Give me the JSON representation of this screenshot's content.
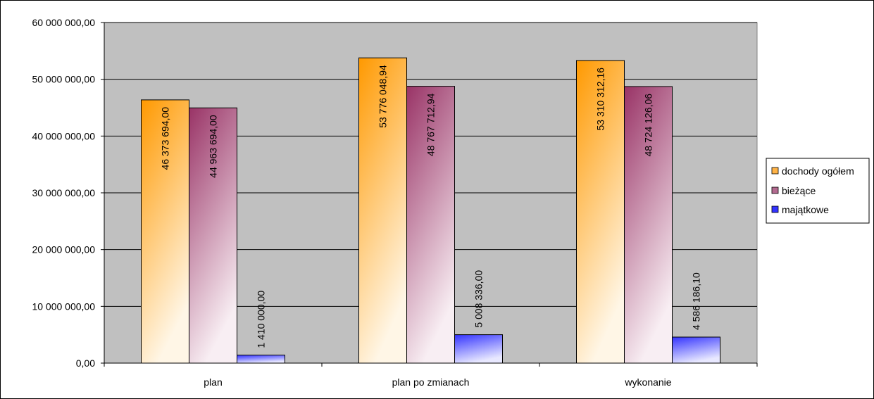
{
  "chart_data": {
    "type": "bar",
    "categories": [
      "plan",
      "plan po zmianach",
      "wykonanie"
    ],
    "series": [
      {
        "name": "dochody ogółem",
        "values": [
          46373694.0,
          53776048.94,
          53310312.16
        ],
        "labels": [
          "46 373 694,00",
          "53 776 048,94",
          "53 310 312,16"
        ],
        "color_top": "#FF9900",
        "color_bottom": "#FFF6E6"
      },
      {
        "name": "bieżące",
        "values": [
          44963694.0,
          48767712.94,
          48724126.06
        ],
        "labels": [
          "44 963 694,00",
          "48 767 712,94",
          "48 724 126,06"
        ],
        "color_top": "#993366",
        "color_bottom": "#F8EEF3"
      },
      {
        "name": "majątkowe",
        "values": [
          1410000.0,
          5008336.0,
          4586186.1
        ],
        "labels": [
          "1 410 000,00",
          "5 008 336,00",
          "4 586 186,10"
        ],
        "color_top": "#3333FF",
        "color_bottom": "#E8E8FF"
      }
    ],
    "ylim": [
      0,
      60000000
    ],
    "y_ticks": [
      "0,00",
      "10 000 000,00",
      "20 000 000,00",
      "30 000 000,00",
      "40 000 000,00",
      "50 000 000,00",
      "60 000 000,00"
    ],
    "y_tick_values": [
      0,
      10000000,
      20000000,
      30000000,
      40000000,
      50000000,
      60000000
    ],
    "grid": true,
    "plot_background": "#C0C0C0",
    "legend_position": "right"
  }
}
